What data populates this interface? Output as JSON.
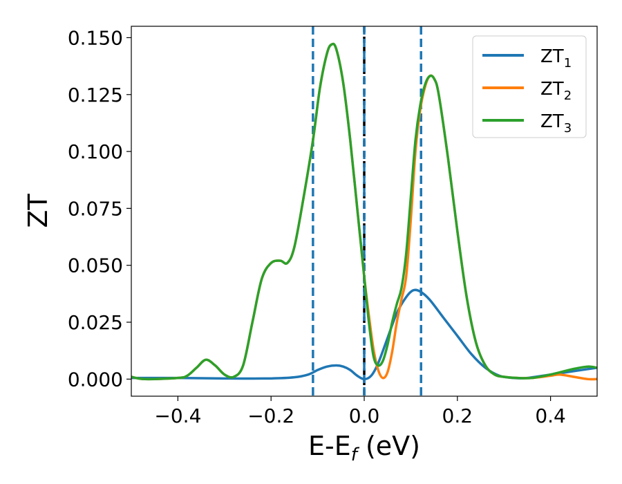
{
  "chart_data": {
    "type": "line",
    "title": "",
    "xlabel": {
      "main": "E-E",
      "sub": "f",
      "unit": " (eV)"
    },
    "ylabel": "ZT",
    "xlim": [
      -0.5,
      0.5
    ],
    "ylim": [
      -0.0075,
      0.155
    ],
    "x_ticks": [
      {
        "value": -0.4,
        "label": "−0.4"
      },
      {
        "value": -0.2,
        "label": "−0.2"
      },
      {
        "value": 0.0,
        "label": "0.0"
      },
      {
        "value": 0.2,
        "label": "0.2"
      },
      {
        "value": 0.4,
        "label": "0.4"
      }
    ],
    "y_ticks": [
      {
        "value": 0.0,
        "label": "0.000"
      },
      {
        "value": 0.025,
        "label": "0.025"
      },
      {
        "value": 0.05,
        "label": "0.050"
      },
      {
        "value": 0.075,
        "label": "0.075"
      },
      {
        "value": 0.1,
        "label": "0.100"
      },
      {
        "value": 0.125,
        "label": "0.125"
      },
      {
        "value": 0.15,
        "label": "0.150"
      }
    ],
    "grid": false,
    "legend_position": "top-right",
    "vertical_lines": [
      {
        "x": -0.11,
        "color": "#1f77b4",
        "style": "dashed"
      },
      {
        "x": 0.0,
        "color": "#000000",
        "style": "dashed"
      },
      {
        "x": 0.0,
        "color": "#1f77b4",
        "style": "dashed"
      },
      {
        "x": 0.122,
        "color": "#1f77b4",
        "style": "dashed"
      }
    ],
    "series": [
      {
        "name": "ZT",
        "sub": "1",
        "color": "#1f77b4",
        "points": [
          [
            -0.5,
            0.0005
          ],
          [
            -0.4,
            0.0005
          ],
          [
            -0.3,
            0.0003
          ],
          [
            -0.2,
            0.0003
          ],
          [
            -0.15,
            0.0008
          ],
          [
            -0.12,
            0.002
          ],
          [
            -0.1,
            0.004
          ],
          [
            -0.08,
            0.0055
          ],
          [
            -0.06,
            0.006
          ],
          [
            -0.045,
            0.0055
          ],
          [
            -0.03,
            0.004
          ],
          [
            -0.015,
            0.0015
          ],
          [
            0.0,
            0.0
          ],
          [
            0.015,
            0.0015
          ],
          [
            0.03,
            0.007
          ],
          [
            0.05,
            0.018
          ],
          [
            0.07,
            0.029
          ],
          [
            0.09,
            0.036
          ],
          [
            0.105,
            0.039
          ],
          [
            0.12,
            0.0385
          ],
          [
            0.14,
            0.035
          ],
          [
            0.17,
            0.027
          ],
          [
            0.2,
            0.019
          ],
          [
            0.23,
            0.011
          ],
          [
            0.26,
            0.005
          ],
          [
            0.29,
            0.0015
          ],
          [
            0.32,
            0.0005
          ],
          [
            0.35,
            0.0005
          ],
          [
            0.4,
            0.002
          ],
          [
            0.45,
            0.0035
          ],
          [
            0.5,
            0.005
          ]
        ]
      },
      {
        "name": "ZT",
        "sub": "2",
        "color": "#ff7f0e",
        "points": [
          [
            -0.5,
            0.001
          ],
          [
            -0.47,
            0.0
          ],
          [
            -0.4,
            0.0005
          ],
          [
            -0.38,
            0.0015
          ],
          [
            -0.36,
            0.005
          ],
          [
            -0.34,
            0.0085
          ],
          [
            -0.32,
            0.006
          ],
          [
            -0.3,
            0.002
          ],
          [
            -0.28,
            0.001
          ],
          [
            -0.26,
            0.006
          ],
          [
            -0.24,
            0.025
          ],
          [
            -0.22,
            0.044
          ],
          [
            -0.2,
            0.051
          ],
          [
            -0.18,
            0.052
          ],
          [
            -0.165,
            0.051
          ],
          [
            -0.15,
            0.058
          ],
          [
            -0.13,
            0.08
          ],
          [
            -0.11,
            0.105
          ],
          [
            -0.095,
            0.128
          ],
          [
            -0.08,
            0.143
          ],
          [
            -0.07,
            0.147
          ],
          [
            -0.06,
            0.145
          ],
          [
            -0.045,
            0.13
          ],
          [
            -0.03,
            0.105
          ],
          [
            -0.015,
            0.075
          ],
          [
            0.0,
            0.045
          ],
          [
            0.01,
            0.028
          ],
          [
            0.02,
            0.013
          ],
          [
            0.03,
            0.004
          ],
          [
            0.04,
            0.0005
          ],
          [
            0.05,
            0.003
          ],
          [
            0.06,
            0.012
          ],
          [
            0.07,
            0.025
          ],
          [
            0.08,
            0.035
          ],
          [
            0.09,
            0.045
          ],
          [
            0.1,
            0.07
          ],
          [
            0.11,
            0.1
          ],
          [
            0.12,
            0.118
          ],
          [
            0.13,
            0.128
          ],
          [
            0.14,
            0.133
          ],
          [
            0.15,
            0.132
          ],
          [
            0.16,
            0.125
          ],
          [
            0.18,
            0.097
          ],
          [
            0.2,
            0.065
          ],
          [
            0.22,
            0.036
          ],
          [
            0.24,
            0.016
          ],
          [
            0.26,
            0.006
          ],
          [
            0.28,
            0.002
          ],
          [
            0.3,
            0.001
          ],
          [
            0.33,
            0.0005
          ],
          [
            0.36,
            0.0005
          ],
          [
            0.4,
            0.0015
          ],
          [
            0.42,
            0.002
          ],
          [
            0.45,
            0.001
          ],
          [
            0.48,
            0.0
          ],
          [
            0.5,
            0.0
          ]
        ]
      },
      {
        "name": "ZT",
        "sub": "3",
        "color": "#2ca02c",
        "points": [
          [
            -0.5,
            0.001
          ],
          [
            -0.47,
            0.0
          ],
          [
            -0.4,
            0.0005
          ],
          [
            -0.38,
            0.0015
          ],
          [
            -0.36,
            0.005
          ],
          [
            -0.34,
            0.0085
          ],
          [
            -0.32,
            0.006
          ],
          [
            -0.3,
            0.002
          ],
          [
            -0.28,
            0.001
          ],
          [
            -0.26,
            0.006
          ],
          [
            -0.24,
            0.025
          ],
          [
            -0.22,
            0.044
          ],
          [
            -0.2,
            0.051
          ],
          [
            -0.18,
            0.052
          ],
          [
            -0.165,
            0.051
          ],
          [
            -0.15,
            0.058
          ],
          [
            -0.13,
            0.08
          ],
          [
            -0.11,
            0.105
          ],
          [
            -0.095,
            0.128
          ],
          [
            -0.08,
            0.143
          ],
          [
            -0.07,
            0.147
          ],
          [
            -0.06,
            0.145
          ],
          [
            -0.045,
            0.13
          ],
          [
            -0.03,
            0.105
          ],
          [
            -0.015,
            0.075
          ],
          [
            0.0,
            0.045
          ],
          [
            0.01,
            0.025
          ],
          [
            0.02,
            0.01
          ],
          [
            0.03,
            0.006
          ],
          [
            0.04,
            0.008
          ],
          [
            0.05,
            0.015
          ],
          [
            0.06,
            0.025
          ],
          [
            0.07,
            0.033
          ],
          [
            0.08,
            0.04
          ],
          [
            0.09,
            0.055
          ],
          [
            0.1,
            0.08
          ],
          [
            0.11,
            0.105
          ],
          [
            0.12,
            0.12
          ],
          [
            0.13,
            0.129
          ],
          [
            0.14,
            0.133
          ],
          [
            0.15,
            0.132
          ],
          [
            0.16,
            0.125
          ],
          [
            0.18,
            0.097
          ],
          [
            0.2,
            0.065
          ],
          [
            0.22,
            0.036
          ],
          [
            0.24,
            0.016
          ],
          [
            0.26,
            0.006
          ],
          [
            0.28,
            0.002
          ],
          [
            0.3,
            0.001
          ],
          [
            0.33,
            0.0005
          ],
          [
            0.36,
            0.0005
          ],
          [
            0.4,
            0.002
          ],
          [
            0.45,
            0.0045
          ],
          [
            0.48,
            0.0055
          ],
          [
            0.5,
            0.005
          ]
        ]
      }
    ]
  }
}
